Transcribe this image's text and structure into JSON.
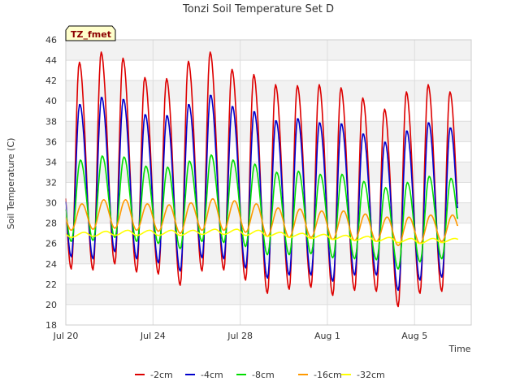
{
  "chart_data": {
    "type": "line",
    "title": "Tonzi Soil Temperature Set D",
    "xlabel": "Time",
    "ylabel": "Soil Temperature (C)",
    "ylim": [
      18,
      46
    ],
    "y_ticks": [
      18,
      20,
      22,
      24,
      26,
      28,
      30,
      32,
      34,
      36,
      38,
      40,
      42,
      44,
      46
    ],
    "x_range_days": [
      "2015-07-20",
      "2015-08-07"
    ],
    "x_ticks": [
      {
        "date": "2015-07-20",
        "label": "Jul 20"
      },
      {
        "date": "2015-07-24",
        "label": "Jul 24"
      },
      {
        "date": "2015-07-28",
        "label": "Jul 28"
      },
      {
        "date": "2015-08-01",
        "label": "Aug 1"
      },
      {
        "date": "2015-08-05",
        "label": "Aug 5"
      }
    ],
    "grid": true,
    "legend_position": "bottom",
    "annotation": "TZ_fmet",
    "series": [
      {
        "name": "-2cm",
        "color": "#dd0000",
        "daily_min": [
          23.5,
          23.4,
          24.0,
          23.2,
          23.0,
          21.9,
          23.3,
          23.4,
          22.4,
          21.1,
          21.5,
          21.7,
          20.9,
          21.4,
          21.3,
          19.8,
          21.1,
          21.3
        ],
        "daily_max": [
          43.8,
          44.8,
          44.2,
          42.3,
          42.2,
          43.9,
          44.8,
          43.1,
          42.6,
          41.6,
          41.5,
          41.6,
          41.3,
          40.3,
          39.2,
          40.9,
          41.6,
          40.9
        ]
      },
      {
        "name": "-4cm",
        "color": "#0000cc",
        "daily_min": [
          24.7,
          24.5,
          25.2,
          24.5,
          24.1,
          23.3,
          24.6,
          24.5,
          23.6,
          22.6,
          22.9,
          22.9,
          22.3,
          22.9,
          22.9,
          21.4,
          22.4,
          22.7
        ],
        "daily_max": [
          39.7,
          40.4,
          40.2,
          38.7,
          38.6,
          39.7,
          40.6,
          39.5,
          39.0,
          38.1,
          38.3,
          37.9,
          37.8,
          36.8,
          36.0,
          37.1,
          37.9,
          37.4
        ]
      },
      {
        "name": "-8cm",
        "color": "#00dd00",
        "daily_min": [
          26.2,
          26.3,
          26.6,
          26.2,
          26.0,
          25.5,
          26.2,
          26.1,
          25.7,
          24.9,
          24.9,
          25.0,
          24.6,
          24.5,
          24.4,
          23.5,
          24.2,
          24.5
        ],
        "daily_max": [
          34.2,
          34.6,
          34.5,
          33.6,
          33.5,
          34.1,
          34.7,
          34.2,
          33.8,
          33.0,
          33.1,
          32.8,
          32.8,
          32.1,
          31.5,
          32.0,
          32.6,
          32.4
        ]
      },
      {
        "name": "-16cm",
        "color": "#ff9900",
        "daily_min": [
          27.3,
          27.4,
          27.5,
          27.3,
          27.2,
          27.0,
          27.3,
          27.3,
          27.1,
          26.7,
          26.6,
          26.6,
          26.4,
          26.3,
          26.2,
          25.8,
          26.0,
          26.2
        ],
        "daily_max": [
          29.9,
          30.3,
          30.3,
          29.9,
          29.8,
          30.0,
          30.4,
          30.2,
          29.9,
          29.5,
          29.4,
          29.2,
          29.2,
          28.9,
          28.6,
          28.6,
          28.8,
          28.8
        ]
      },
      {
        "name": "-32cm",
        "color": "#ffff00",
        "daily_min": [
          26.6,
          26.7,
          26.8,
          26.8,
          26.8,
          26.8,
          26.9,
          26.9,
          26.8,
          26.7,
          26.6,
          26.5,
          26.4,
          26.3,
          26.2,
          26.1,
          26.0,
          26.1
        ],
        "daily_max": [
          27.1,
          27.2,
          27.3,
          27.3,
          27.3,
          27.3,
          27.4,
          27.4,
          27.3,
          27.1,
          27.0,
          26.9,
          26.8,
          26.7,
          26.6,
          26.5,
          26.5,
          26.5
        ]
      }
    ]
  }
}
